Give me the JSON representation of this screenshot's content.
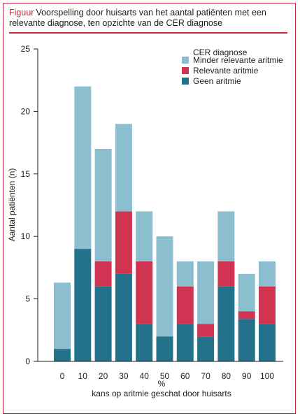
{
  "header": {
    "label": "Figuur",
    "title": "Voorspelling door huisarts van het aantal patiënten met een relevante diagnose, ten opzichte van de CER diagnose"
  },
  "chart_data": {
    "type": "bar",
    "stacked": true,
    "categories": [
      "0",
      "10",
      "20",
      "30",
      "40",
      "50",
      "60",
      "70",
      "80",
      "90",
      "100"
    ],
    "series": [
      {
        "name": "Geen aritmie",
        "color": "#23718a",
        "values": [
          1,
          9,
          6,
          7,
          3,
          2,
          3,
          2,
          6,
          3.4,
          3
        ]
      },
      {
        "name": "Relevante aritmie",
        "color": "#cf3553",
        "values": [
          0,
          0,
          2,
          5,
          5,
          0,
          3,
          1,
          2,
          0.6,
          3
        ]
      },
      {
        "name": "Minder relevante aritmie",
        "color": "#8bbfcf",
        "values": [
          5.3,
          13,
          9,
          7,
          4,
          8,
          2,
          5,
          4,
          3,
          2
        ]
      }
    ],
    "legend_order": [
      "Minder relevante aritmie",
      "Relevante aritmie",
      "Geen aritmie"
    ],
    "legend_title": "CER diagnose",
    "legend_position": "top-right",
    "ylabel": "Aantal patiënten (n)",
    "xlabel_unit": "%",
    "xlabel": "kans op aritmie geschat door huisarts",
    "ylim": [
      0,
      25
    ],
    "yticks": [
      0,
      5,
      10,
      15,
      20,
      25
    ],
    "grid": false
  }
}
